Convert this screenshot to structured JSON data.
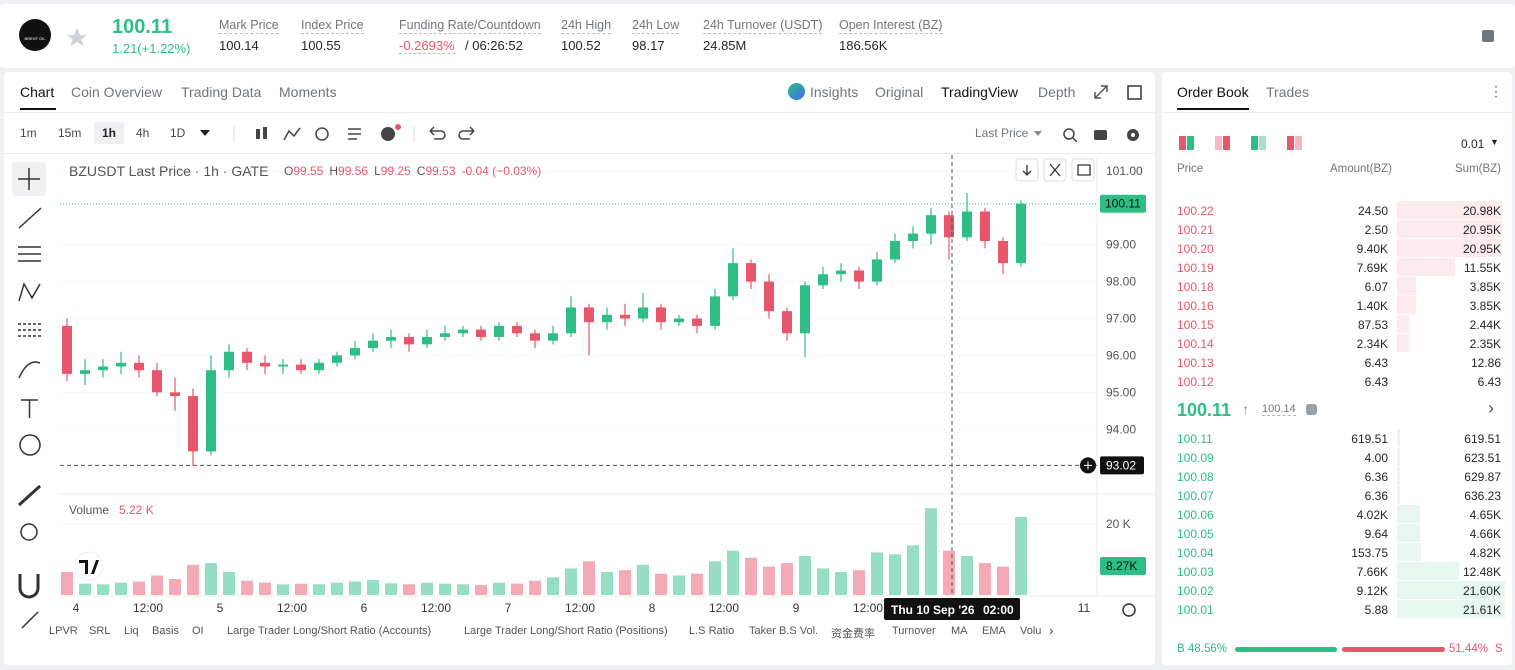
{
  "header": {
    "logo": "BRENT OIL",
    "price": "100.11",
    "change": "1.21(+1.22%)",
    "stats": [
      {
        "label": "Mark Price",
        "value": "100.14"
      },
      {
        "label": "Index Price",
        "value": "100.55"
      },
      {
        "label": "Funding Rate/Countdown",
        "value": "-0.2693%",
        "extra": "/ 06:26:52"
      },
      {
        "label": "24h High",
        "value": "100.52"
      },
      {
        "label": "24h Low",
        "value": "98.17"
      },
      {
        "label": "24h Turnover (USDT)",
        "value": "24.85M"
      },
      {
        "label": "Open Interest (BZ)",
        "value": "186.56K"
      }
    ]
  },
  "tabs": [
    "Chart",
    "Coin Overview",
    "Trading Data",
    "Moments"
  ],
  "view_tabs": [
    "Insights",
    "Original",
    "TradingView",
    "Depth"
  ],
  "intervals": [
    "1m",
    "15m",
    "1h",
    "4h",
    "1D"
  ],
  "price_type": "Last Price",
  "chart_data": {
    "type": "candlestick",
    "title": "BZUSDT Last Price · 1h · GATE",
    "legend_ohlc": [
      {
        "key": "O",
        "value": "99.55"
      },
      {
        "key": "H",
        "value": "99.56"
      },
      {
        "key": "L",
        "value": "99.25"
      },
      {
        "key": "C",
        "value": "99.53"
      }
    ],
    "legend_change": "-0.04 (−0.03%)",
    "up_color": "#2ebd85",
    "down_color": "#e8566b",
    "ylim": [
      92.3,
      101.43
    ],
    "yticks": [
      {
        "value": 94,
        "label": "94.00"
      },
      {
        "value": 95,
        "label": "95.00"
      },
      {
        "value": 96,
        "label": "96.00"
      },
      {
        "value": 97,
        "label": "97.00"
      },
      {
        "value": 98,
        "label": "98.00"
      },
      {
        "value": 99,
        "label": "99.00"
      },
      {
        "value": 101,
        "label": "101.00"
      }
    ],
    "x_labels": [
      "4",
      "12:00",
      "5",
      "12:00",
      "6",
      "12:00",
      "7",
      "12:00",
      "8",
      "12:00",
      "9",
      "12:00",
      null,
      null,
      "11"
    ],
    "last_price": 100.11,
    "crosshair_price": 93.02,
    "crosshair_time": "Thu 10 Sep '26",
    "crosshair_clock": "02:00",
    "volume": {
      "title": "Volume",
      "last": "5.22 K",
      "tag": "8.27K",
      "ylim": [
        0,
        26800
      ],
      "yticks": [
        {
          "value": 20000,
          "label": "20 K"
        }
      ]
    },
    "candles": [
      {
        "o": 96.8,
        "h": 97.0,
        "l": 95.3,
        "c": 95.5,
        "v": 6500
      },
      {
        "o": 95.5,
        "h": 95.9,
        "l": 95.2,
        "c": 95.6,
        "v": 3200
      },
      {
        "o": 95.6,
        "h": 95.9,
        "l": 95.4,
        "c": 95.7,
        "v": 3000
      },
      {
        "o": 95.7,
        "h": 96.1,
        "l": 95.5,
        "c": 95.8,
        "v": 3500
      },
      {
        "o": 95.8,
        "h": 96.0,
        "l": 95.4,
        "c": 95.6,
        "v": 3800
      },
      {
        "o": 95.6,
        "h": 95.8,
        "l": 94.9,
        "c": 95.0,
        "v": 5500
      },
      {
        "o": 95.0,
        "h": 95.4,
        "l": 94.5,
        "c": 94.9,
        "v": 4500
      },
      {
        "o": 94.9,
        "h": 95.1,
        "l": 93.02,
        "c": 93.4,
        "v": 8500
      },
      {
        "o": 93.4,
        "h": 96.0,
        "l": 93.3,
        "c": 95.6,
        "v": 9000
      },
      {
        "o": 95.6,
        "h": 96.3,
        "l": 95.4,
        "c": 96.1,
        "v": 6500
      },
      {
        "o": 96.1,
        "h": 96.2,
        "l": 95.6,
        "c": 95.8,
        "v": 4000
      },
      {
        "o": 95.8,
        "h": 96.0,
        "l": 95.5,
        "c": 95.7,
        "v": 3500
      },
      {
        "o": 95.7,
        "h": 95.9,
        "l": 95.5,
        "c": 95.75,
        "v": 3000
      },
      {
        "o": 95.75,
        "h": 95.9,
        "l": 95.5,
        "c": 95.6,
        "v": 3200
      },
      {
        "o": 95.6,
        "h": 95.9,
        "l": 95.5,
        "c": 95.8,
        "v": 3000
      },
      {
        "o": 95.8,
        "h": 96.1,
        "l": 95.7,
        "c": 96.0,
        "v": 3500
      },
      {
        "o": 96.0,
        "h": 96.4,
        "l": 95.9,
        "c": 96.2,
        "v": 3800
      },
      {
        "o": 96.2,
        "h": 96.6,
        "l": 96.1,
        "c": 96.4,
        "v": 4200
      },
      {
        "o": 96.4,
        "h": 96.7,
        "l": 96.2,
        "c": 96.5,
        "v": 3300
      },
      {
        "o": 96.5,
        "h": 96.6,
        "l": 96.1,
        "c": 96.3,
        "v": 3000
      },
      {
        "o": 96.3,
        "h": 96.7,
        "l": 96.2,
        "c": 96.5,
        "v": 3500
      },
      {
        "o": 96.5,
        "h": 96.8,
        "l": 96.4,
        "c": 96.6,
        "v": 3200
      },
      {
        "o": 96.6,
        "h": 96.8,
        "l": 96.5,
        "c": 96.7,
        "v": 3000
      },
      {
        "o": 96.7,
        "h": 96.8,
        "l": 96.4,
        "c": 96.5,
        "v": 2800
      },
      {
        "o": 96.5,
        "h": 96.9,
        "l": 96.4,
        "c": 96.8,
        "v": 3500
      },
      {
        "o": 96.8,
        "h": 96.9,
        "l": 96.5,
        "c": 96.6,
        "v": 3200
      },
      {
        "o": 96.6,
        "h": 96.7,
        "l": 96.2,
        "c": 96.4,
        "v": 4000
      },
      {
        "o": 96.4,
        "h": 96.8,
        "l": 96.3,
        "c": 96.6,
        "v": 5000
      },
      {
        "o": 96.6,
        "h": 97.6,
        "l": 96.5,
        "c": 97.3,
        "v": 7500
      },
      {
        "o": 97.3,
        "h": 97.4,
        "l": 96.0,
        "c": 96.9,
        "v": 9500
      },
      {
        "o": 96.9,
        "h": 97.3,
        "l": 96.7,
        "c": 97.1,
        "v": 6500
      },
      {
        "o": 97.1,
        "h": 97.4,
        "l": 96.8,
        "c": 97.0,
        "v": 7000
      },
      {
        "o": 97.0,
        "h": 97.7,
        "l": 96.9,
        "c": 97.3,
        "v": 8500
      },
      {
        "o": 97.3,
        "h": 97.4,
        "l": 96.7,
        "c": 96.9,
        "v": 6000
      },
      {
        "o": 96.9,
        "h": 97.1,
        "l": 96.8,
        "c": 97.0,
        "v": 5500
      },
      {
        "o": 97.0,
        "h": 97.1,
        "l": 96.6,
        "c": 96.8,
        "v": 6000
      },
      {
        "o": 96.8,
        "h": 97.8,
        "l": 96.7,
        "c": 97.6,
        "v": 9500
      },
      {
        "o": 97.6,
        "h": 98.9,
        "l": 97.5,
        "c": 98.5,
        "v": 12500
      },
      {
        "o": 98.5,
        "h": 98.6,
        "l": 97.8,
        "c": 98.0,
        "v": 10500
      },
      {
        "o": 98.0,
        "h": 98.2,
        "l": 97.0,
        "c": 97.2,
        "v": 8000
      },
      {
        "o": 97.2,
        "h": 97.3,
        "l": 96.4,
        "c": 96.6,
        "v": 9000
      },
      {
        "o": 96.6,
        "h": 98.0,
        "l": 95.95,
        "c": 97.9,
        "v": 11000
      },
      {
        "o": 97.9,
        "h": 98.4,
        "l": 97.8,
        "c": 98.2,
        "v": 7500
      },
      {
        "o": 98.2,
        "h": 98.5,
        "l": 98.0,
        "c": 98.3,
        "v": 6500
      },
      {
        "o": 98.3,
        "h": 98.4,
        "l": 97.8,
        "c": 98.0,
        "v": 7000
      },
      {
        "o": 98.0,
        "h": 98.8,
        "l": 97.9,
        "c": 98.6,
        "v": 12000
      },
      {
        "o": 98.6,
        "h": 99.3,
        "l": 98.5,
        "c": 99.1,
        "v": 11500
      },
      {
        "o": 99.1,
        "h": 99.5,
        "l": 98.9,
        "c": 99.3,
        "v": 14000
      },
      {
        "o": 99.3,
        "h": 100.0,
        "l": 99.0,
        "c": 99.8,
        "v": 24500
      },
      {
        "o": 99.8,
        "h": 99.9,
        "l": 98.6,
        "c": 99.2,
        "v": 12500
      },
      {
        "o": 99.2,
        "h": 100.4,
        "l": 99.1,
        "c": 99.9,
        "v": 11000
      },
      {
        "o": 99.9,
        "h": 100.0,
        "l": 98.9,
        "c": 99.1,
        "v": 9000
      },
      {
        "o": 99.1,
        "h": 99.2,
        "l": 98.2,
        "c": 98.5,
        "v": 8000
      },
      {
        "o": 98.5,
        "h": 100.2,
        "l": 98.4,
        "c": 100.11,
        "v": 22000
      }
    ]
  },
  "indicators": [
    "LPVR",
    "SRL",
    "Liq",
    "Basis",
    "OI",
    "Large Trader Long/Short Ratio (Accounts)",
    "Large Trader Long/Short Ratio (Positions)",
    "L.S Ratio",
    "Taker B.S Vol.",
    "资金费率",
    "Turnover",
    "MA",
    "EMA",
    "Volu"
  ],
  "order_book": {
    "tabs": [
      "Order Book",
      "Trades"
    ],
    "precision": "0.01",
    "columns": [
      "Price",
      "Amount(BZ)",
      "Sum(BZ)"
    ],
    "asks": [
      [
        "100.22",
        "24.50",
        "20.98K"
      ],
      [
        "100.21",
        "2.50",
        "20.95K"
      ],
      [
        "100.20",
        "9.40K",
        "20.95K"
      ],
      [
        "100.19",
        "7.69K",
        "11.55K"
      ],
      [
        "100.18",
        "6.07",
        "3.85K"
      ],
      [
        "100.16",
        "1.40K",
        "3.85K"
      ],
      [
        "100.15",
        "87.53",
        "2.44K"
      ],
      [
        "100.14",
        "2.34K",
        "2.35K"
      ],
      [
        "100.13",
        "6.43",
        "12.86"
      ],
      [
        "100.12",
        "6.43",
        "6.43"
      ]
    ],
    "mid_price": "100.11",
    "mark_price": "100.14",
    "bids": [
      [
        "100.11",
        "619.51",
        "619.51"
      ],
      [
        "100.09",
        "4.00",
        "623.51"
      ],
      [
        "100.08",
        "6.36",
        "629.87"
      ],
      [
        "100.07",
        "6.36",
        "636.23"
      ],
      [
        "100.06",
        "4.02K",
        "4.65K"
      ],
      [
        "100.05",
        "9.64",
        "4.66K"
      ],
      [
        "100.04",
        "153.75",
        "4.82K"
      ],
      [
        "100.03",
        "7.66K",
        "12.48K"
      ],
      [
        "100.02",
        "9.12K",
        "21.60K"
      ],
      [
        "100.01",
        "5.88",
        "21.61K"
      ]
    ],
    "buy_label": "B",
    "buy_ratio": "48.56%",
    "sell_ratio": "51.44%",
    "sell_label": "S"
  }
}
